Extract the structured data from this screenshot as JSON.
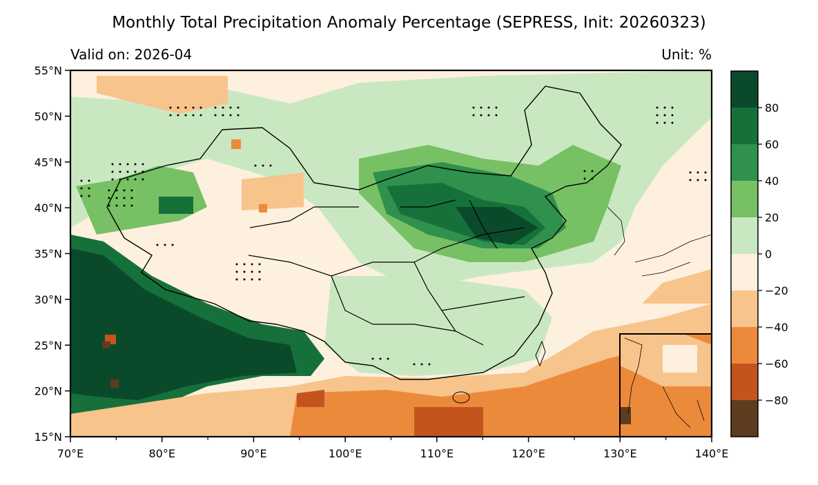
{
  "title": "Monthly Total Precipitation Anomaly Percentage (SEPRESS, Init: 20260323)",
  "valid_label": "Valid on: 2026-04",
  "unit_label": "Unit: %",
  "map": {
    "lon_range": [
      70,
      140
    ],
    "lat_range": [
      15,
      55
    ],
    "lat_ticks": [
      "55°N",
      "50°N",
      "45°N",
      "40°N",
      "35°N",
      "30°N",
      "25°N",
      "20°N",
      "15°N"
    ],
    "lon_ticks": [
      "70°E",
      "80°E",
      "90°E",
      "100°E",
      "110°E",
      "120°E",
      "130°E",
      "140°E"
    ]
  },
  "colorbar": {
    "ticks": [
      "80",
      "60",
      "40",
      "20",
      "0",
      "−20",
      "−40",
      "−60",
      "−80"
    ],
    "colors": [
      "#0a4a2b",
      "#16703a",
      "#2f914b",
      "#77c064",
      "#c9e8c1",
      "#fdf0de",
      "#f7c48b",
      "#ec8a3c",
      "#c4541e",
      "#5e3c1f"
    ]
  }
}
